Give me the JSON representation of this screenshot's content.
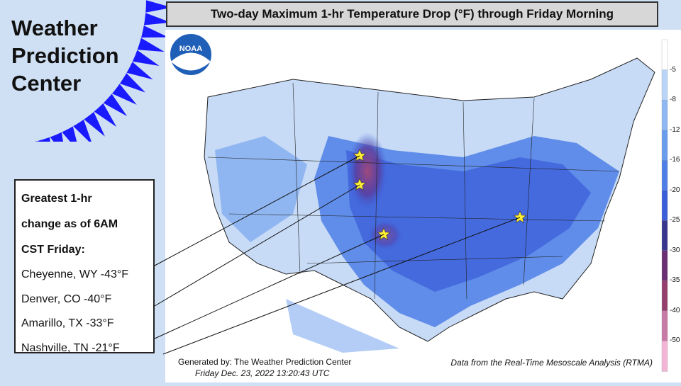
{
  "brand": {
    "line1": "Weather",
    "line2": "Prediction",
    "line3": "Center"
  },
  "title": "Two-day Maximum 1-hr Temperature Drop (°F) through Friday Morning",
  "logo": {
    "text": "NOAA"
  },
  "legend": {
    "title_line1": "Greatest 1-hr",
    "title_line2": "change as of 6AM",
    "title_line3": "CST Friday:",
    "items": [
      {
        "label": "Cheyenne, WY -43°F"
      },
      {
        "label": "Denver, CO -40°F"
      },
      {
        "label": "Amarillo, TX -33°F"
      },
      {
        "label": "Nashville, TN -21°F"
      }
    ]
  },
  "footer": {
    "generated": "Generated by: The Weather Prediction Center",
    "date": "Friday Dec. 23, 2022  13:20:43 UTC",
    "source": "Data from the Real-Time Mesoscale Analysis (RTMA)"
  },
  "scale": {
    "labels": [
      "-5",
      "-8",
      "-12",
      "-16",
      "-20",
      "-25",
      "-30",
      "-35",
      "-40",
      "-50"
    ],
    "colors": [
      "#ffffff",
      "#b9d4f7",
      "#8fb8f2",
      "#6a9cee",
      "#4d7fe6",
      "#3b5fd9",
      "#38378f",
      "#6b2f74",
      "#94406f",
      "#c77aa6",
      "#f3b5d6"
    ]
  },
  "colors": {
    "sun": "#1a1aff",
    "background": "#cfe0f4",
    "star": "#ffee33"
  }
}
